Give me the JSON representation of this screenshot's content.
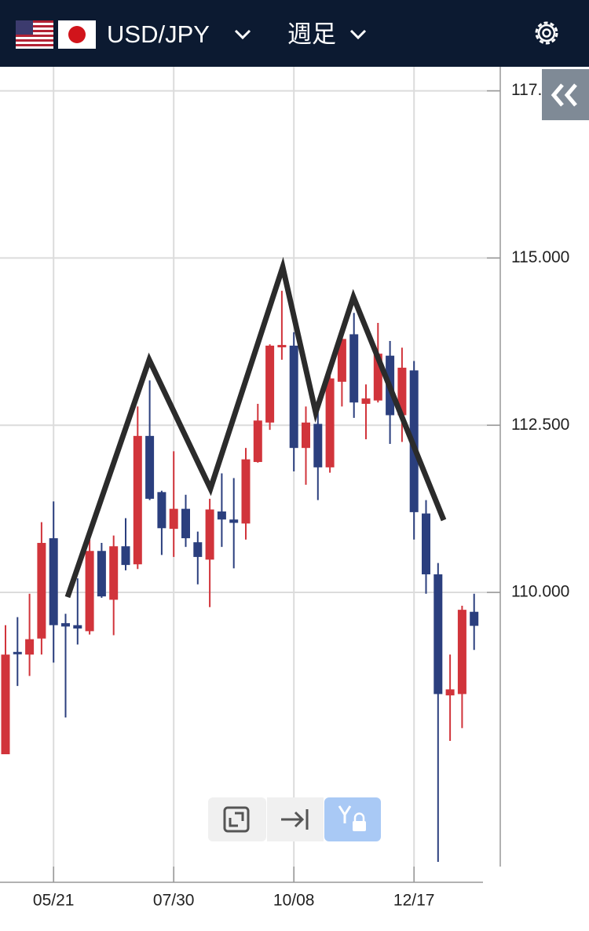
{
  "header": {
    "pair": "USD/JPY",
    "timeframe": "週足"
  },
  "chart_data": {
    "type": "candlestick",
    "categories": [
      null,
      null,
      null,
      null,
      "05/21",
      null,
      null,
      null,
      null,
      null,
      null,
      null,
      null,
      null,
      "07/30",
      null,
      null,
      null,
      null,
      null,
      null,
      null,
      null,
      null,
      "10/08",
      null,
      null,
      null,
      null,
      null,
      null,
      null,
      null,
      null,
      "12/17",
      null,
      null,
      null,
      null,
      null
    ],
    "open": [
      107.58,
      109.11,
      109.07,
      109.31,
      110.81,
      109.54,
      109.51,
      109.42,
      110.62,
      109.89,
      110.69,
      110.42,
      112.34,
      111.5,
      110.95,
      111.25,
      110.75,
      110.49,
      111.21,
      111.09,
      111.03,
      111.95,
      112.54,
      113.67,
      113.69,
      112.16,
      112.52,
      111.87,
      113.15,
      113.86,
      112.82,
      112.87,
      113.54,
      112.65,
      113.32,
      111.18,
      110.27,
      108.46,
      108.48,
      109.71
    ],
    "high": [
      109.51,
      109.63,
      109.98,
      111.05,
      111.36,
      109.68,
      110.21,
      110.79,
      110.74,
      110.85,
      111.11,
      112.78,
      113.17,
      111.52,
      112.11,
      111.46,
      110.91,
      111.4,
      111.78,
      111.71,
      112.16,
      112.82,
      113.71,
      114.51,
      113.89,
      112.78,
      112.72,
      113.25,
      113.81,
      114.18,
      113.11,
      114.03,
      113.76,
      113.66,
      113.46,
      111.38,
      110.44,
      109.07,
      109.8,
      109.98
    ],
    "low": [
      107.58,
      108.6,
      108.75,
      109.07,
      108.95,
      108.13,
      109.22,
      109.37,
      109.92,
      109.36,
      110.33,
      110.35,
      111.38,
      110.56,
      110.53,
      110.68,
      110.12,
      109.78,
      110.68,
      110.36,
      110.79,
      111.94,
      112.43,
      113.48,
      111.81,
      111.61,
      111.38,
      111.79,
      112.78,
      112.61,
      112.29,
      112.84,
      112.22,
      112.25,
      110.79,
      109.98,
      105.97,
      107.78,
      107.97,
      109.14
    ],
    "close": [
      109.07,
      109.08,
      109.3,
      110.74,
      109.51,
      109.49,
      109.46,
      110.62,
      109.94,
      110.69,
      110.41,
      112.34,
      111.4,
      110.96,
      111.25,
      110.81,
      110.53,
      111.24,
      111.09,
      111.04,
      111.99,
      112.57,
      113.69,
      113.7,
      112.16,
      112.54,
      111.87,
      113.2,
      113.79,
      112.84,
      112.9,
      113.57,
      112.65,
      113.36,
      111.2,
      110.27,
      108.48,
      108.55,
      109.74,
      109.5
    ],
    "up_color": "#d1343b",
    "down_color": "#2b3f7e",
    "ylim": [
      105.9,
      117.86
    ],
    "yticks": [
      {
        "value": 110,
        "label": "110.000"
      },
      {
        "value": 112.5,
        "label": "112.500"
      },
      {
        "value": 115,
        "label": "115.000"
      },
      {
        "value": 117.5,
        "label": "117.500"
      }
    ],
    "grid": true
  }
}
